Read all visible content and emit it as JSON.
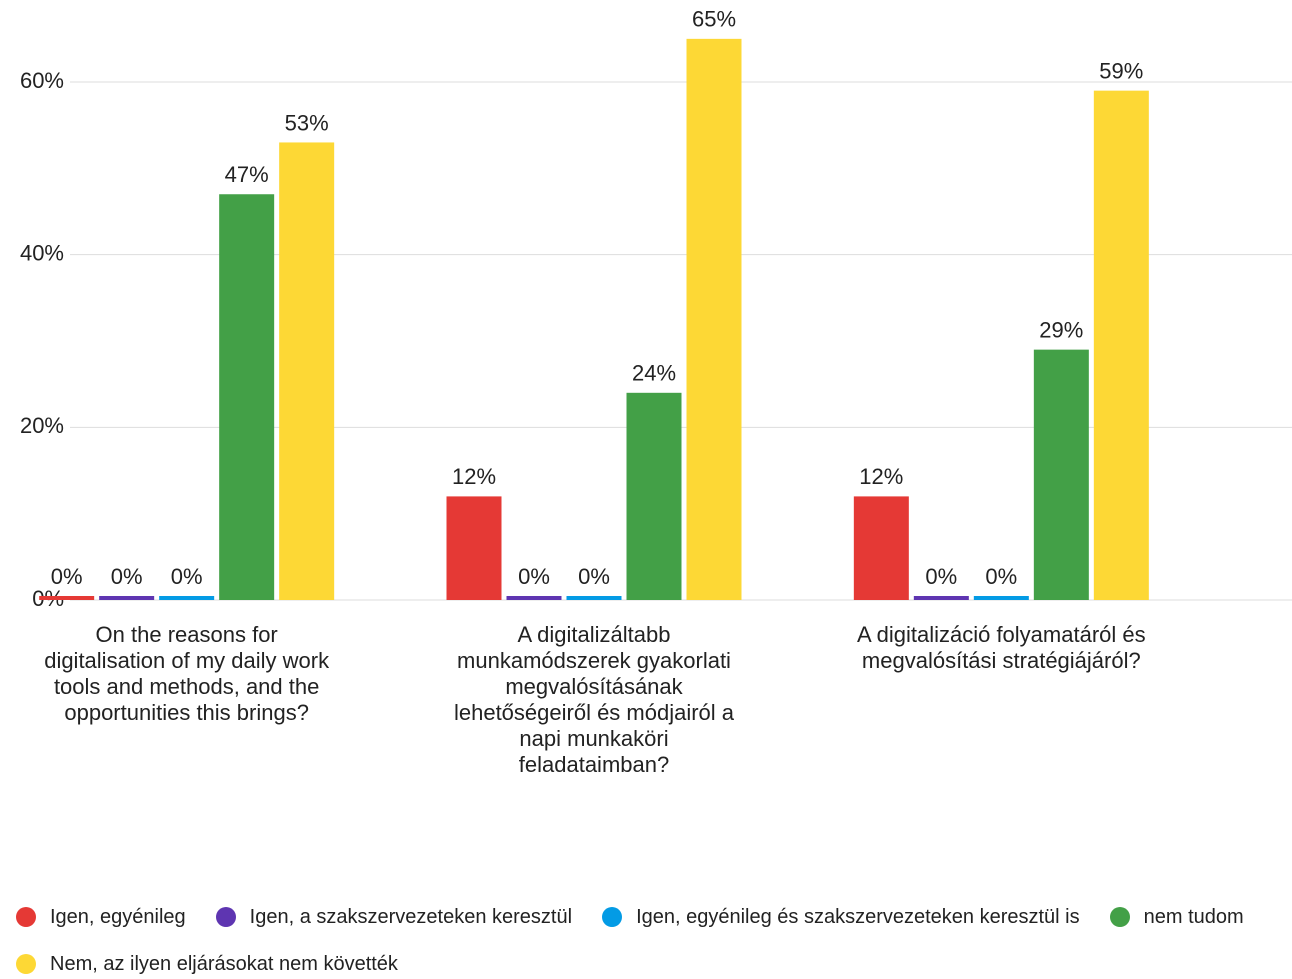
{
  "chart_data": {
    "type": "bar",
    "categories": [
      "On the reasons for digitalisation of my daily work tools and methods, and the opportunities this brings?",
      "A digitalizáltabb munkamódszerek gyakorlati megvalósításának lehetőségeiről és módjairól a napi munkaköri feladataimban?",
      "A digitalizáció folyamatáról és megvalósítási stratégiájáról?"
    ],
    "series": [
      {
        "name": "Igen, egyénileg",
        "color": "#e53935",
        "values": [
          0,
          12,
          12
        ],
        "value_labels": [
          "0%",
          "12%",
          "12%"
        ]
      },
      {
        "name": "Igen, a szakszervezeteken keresztül",
        "color": "#5e35b1",
        "values": [
          0,
          0,
          0
        ],
        "value_labels": [
          "0%",
          "0%",
          "0%"
        ]
      },
      {
        "name": "Igen, egyénileg és szakszervezeteken keresztül is",
        "color": "#039be5",
        "values": [
          0,
          0,
          0
        ],
        "value_labels": [
          "0%",
          "0%",
          "0%"
        ]
      },
      {
        "name": "nem tudom",
        "color": "#43a047",
        "values": [
          47,
          24,
          29
        ],
        "value_labels": [
          "47%",
          "24%",
          "29%"
        ]
      },
      {
        "name": "Nem, az ilyen eljárásokat nem követték",
        "color": "#fdd835",
        "values": [
          53,
          65,
          59
        ],
        "value_labels": [
          "53%",
          "65%",
          "59%"
        ]
      }
    ],
    "ylim": [
      0,
      69.5
    ],
    "yticks": [
      {
        "value": 0,
        "label": "0%"
      },
      {
        "value": 20,
        "label": "20%"
      },
      {
        "value": 40,
        "label": "40%"
      },
      {
        "value": 60,
        "label": "60%"
      }
    ],
    "grid": true,
    "legend": "bottom"
  }
}
